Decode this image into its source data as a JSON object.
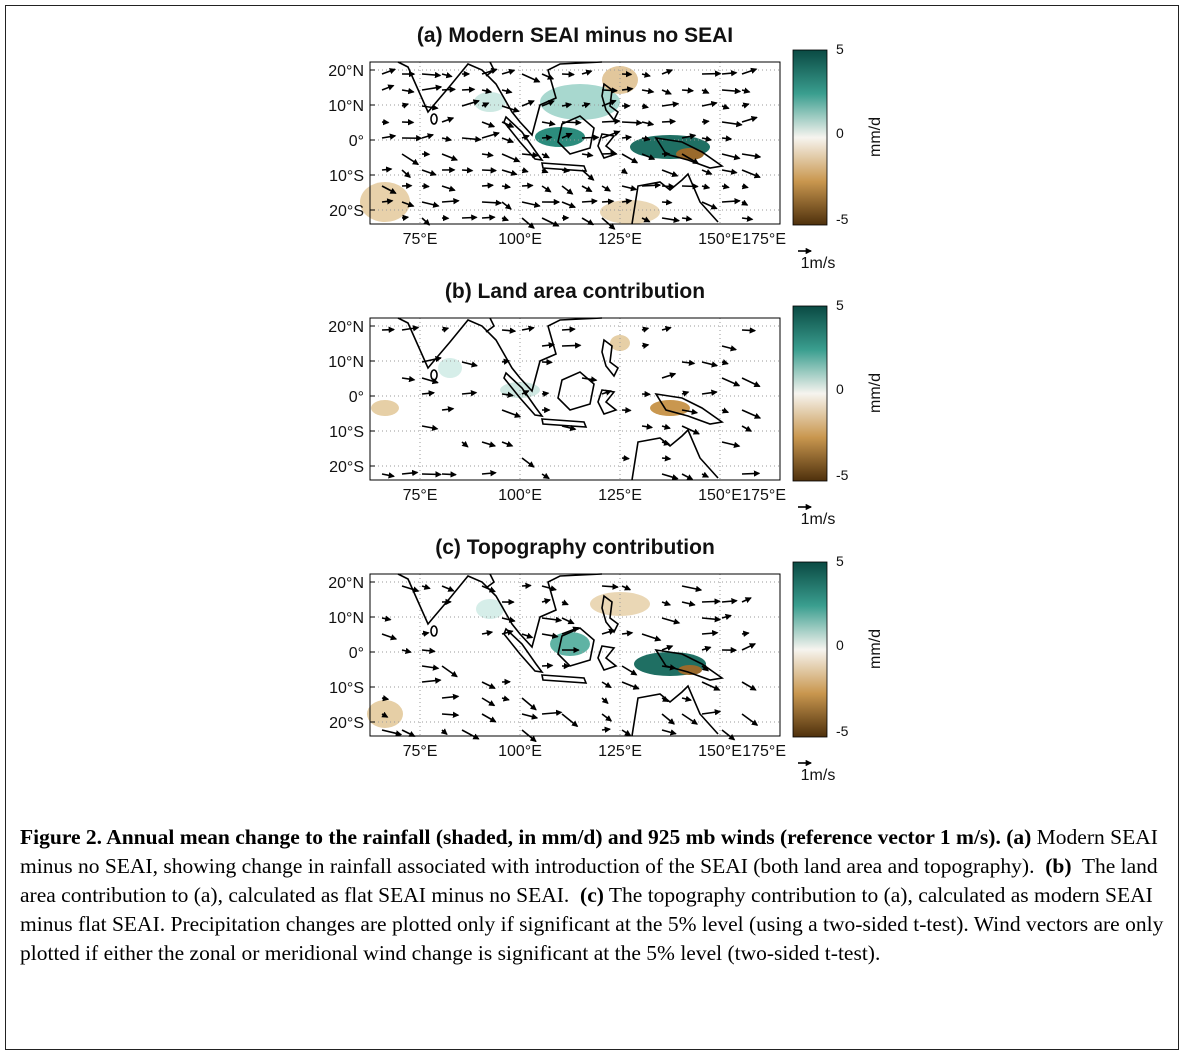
{
  "panels": [
    {
      "title": "(a) Modern SEAI minus no SEAI",
      "lat_labels": [
        "20°N",
        "10°N",
        "0°",
        "10°S",
        "20°S"
      ],
      "lon_labels": [
        "75°E",
        "100°E",
        "125°E",
        "150°E",
        "175°E"
      ],
      "colorbar_ticks": [
        "5",
        "0",
        "-5"
      ],
      "colorbar_label": "mm/d",
      "reference_vector": "1m/s"
    },
    {
      "title": "(b) Land area contribution",
      "lat_labels": [
        "20°N",
        "10°N",
        "0°",
        "10°S",
        "20°S"
      ],
      "lon_labels": [
        "75°E",
        "100°E",
        "125°E",
        "150°E",
        "175°E"
      ],
      "colorbar_ticks": [
        "5",
        "0",
        "-5"
      ],
      "colorbar_label": "mm/d",
      "reference_vector": "1m/s"
    },
    {
      "title": "(c) Topography contribution",
      "lat_labels": [
        "20°N",
        "10°N",
        "0°",
        "10°S",
        "20°S"
      ],
      "lon_labels": [
        "75°E",
        "100°E",
        "125°E",
        "150°E",
        "175°E"
      ],
      "colorbar_ticks": [
        "5",
        "0",
        "-5"
      ],
      "colorbar_label": "mm/d",
      "reference_vector": "1m/s"
    }
  ],
  "caption": {
    "lead": "Figure 2.  Annual mean change to the rainfall (shaded, in mm/d) and 925 mb winds (reference vector 1 m/s).",
    "a_label": "(a)",
    "a_text": "Modern SEAI minus no SEAI, showing change in rainfall associated with introduction of the SEAI (both land area and topography).",
    "b_label": "(b)",
    "b_text": "The land area contribution to (a), calculated as flat SEAI minus no SEAI.",
    "c_label": "(c)",
    "c_text": "The topography contribution to (a), calculated as modern SEAI minus flat SEAI.  Precipitation changes are plotted only if significant at the 5% level (using a two-sided t-test).  Wind vectors are only plotted if either the zonal or meridional wind change is significant at the 5% level (two-sided t-test)."
  }
}
